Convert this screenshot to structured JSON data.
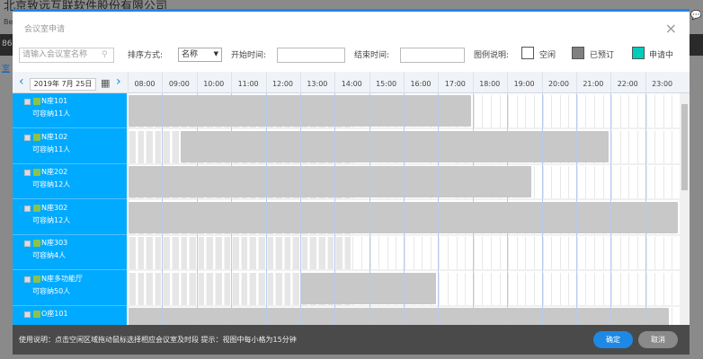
{
  "background": {
    "company": "北京致远互联软件股份有限公司",
    "company_en": "Be",
    "phone": "86",
    "link": "室"
  },
  "modal": {
    "title": "会议室申请",
    "close": "×"
  },
  "toolbar": {
    "search_placeholder": "请输入会议室名称",
    "sort_label": "排序方式:",
    "sort_value": "名称",
    "start_label": "开始时间:",
    "start_value": "",
    "end_label": "结束时间:",
    "end_value": "",
    "legend_label": "图例说明:",
    "legend": [
      {
        "label": "空闲",
        "color": "#ffffff"
      },
      {
        "label": "已预订",
        "color": "#808080"
      },
      {
        "label": "申请中",
        "color": "#00ccbb"
      }
    ]
  },
  "timeline": {
    "date": "2019年 7月 25日",
    "prev": "‹",
    "next": "›",
    "hours": [
      "08:00",
      "09:00",
      "10:00",
      "11:00",
      "12:00",
      "13:00",
      "14:00",
      "15:00",
      "16:00",
      "17:00",
      "18:00",
      "19:00",
      "20:00",
      "21:00",
      "22:00",
      "23:00"
    ],
    "current_time": "14:30"
  },
  "rooms": [
    {
      "name": "N座101",
      "capacity": "可容纳11人",
      "bookings": [
        [
          "08:00",
          "18:00"
        ]
      ]
    },
    {
      "name": "N座102",
      "capacity": "可容纳11人",
      "bookings": [
        [
          "09:30",
          "22:00"
        ]
      ]
    },
    {
      "name": "N座202",
      "capacity": "可容纳12人",
      "bookings": [
        [
          "08:00",
          "19:45"
        ]
      ]
    },
    {
      "name": "N座302",
      "capacity": "可容纳12人",
      "bookings": [
        [
          "08:00",
          "24:00"
        ]
      ]
    },
    {
      "name": "N座303",
      "capacity": "可容纳4人",
      "bookings": []
    },
    {
      "name": "N座多功能厅",
      "capacity": "可容纳50人",
      "bookings": [
        [
          "13:00",
          "17:00"
        ]
      ]
    },
    {
      "name": "O座101",
      "capacity": "",
      "bookings": [
        [
          "08:00",
          "23:45"
        ]
      ]
    }
  ],
  "footer": {
    "hint": "使用说明：点击空闲区域拖动鼠标选择相应会议室及时段 提示：视图中每小格为15分钟",
    "ok": "确定",
    "cancel": "取消"
  },
  "colors": {
    "accent": "#1e88e5",
    "room_bg": "#00aaff",
    "booked": "#c8c8c8",
    "past": "#e6e6e6"
  }
}
